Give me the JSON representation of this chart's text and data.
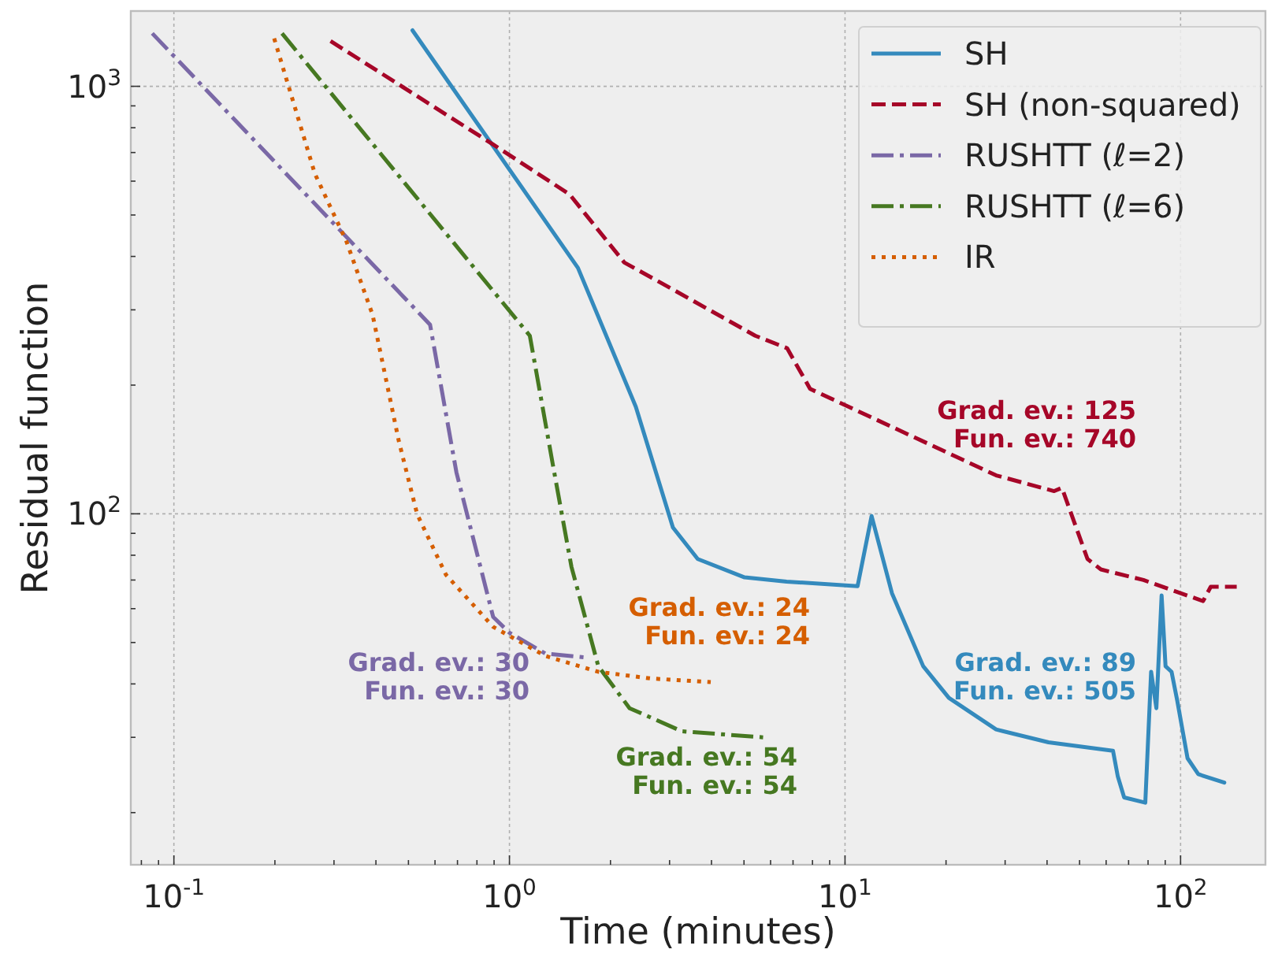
{
  "chart_data": {
    "type": "line",
    "xlabel": "Time (minutes)",
    "ylabel": "Residual function",
    "log": "xy",
    "grid": true,
    "legend": "top right",
    "xlim": [
      0.0744,
      179
    ],
    "ylim": [
      15.1,
      1500
    ],
    "xticks": [
      {
        "value": 0.08,
        "label": null
      },
      {
        "value": 0.09,
        "label": null
      },
      {
        "value": 0.1,
        "label": "10$^{-1}$"
      },
      {
        "value": 0.2,
        "label": null
      },
      {
        "value": 0.3,
        "label": null
      },
      {
        "value": 0.4,
        "label": null
      },
      {
        "value": 0.5,
        "label": null
      },
      {
        "value": 0.6,
        "label": null
      },
      {
        "value": 0.7,
        "label": null
      },
      {
        "value": 0.8,
        "label": null
      },
      {
        "value": 0.9,
        "label": null
      },
      {
        "value": 1,
        "label": "10$^{0}$"
      },
      {
        "value": 2,
        "label": null
      },
      {
        "value": 3,
        "label": null
      },
      {
        "value": 4,
        "label": null
      },
      {
        "value": 5,
        "label": null
      },
      {
        "value": 6,
        "label": null
      },
      {
        "value": 7,
        "label": null
      },
      {
        "value": 8,
        "label": null
      },
      {
        "value": 9,
        "label": null
      },
      {
        "value": 10,
        "label": "10$^{1}$"
      },
      {
        "value": 20,
        "label": null
      },
      {
        "value": 30,
        "label": null
      },
      {
        "value": 40,
        "label": null
      },
      {
        "value": 50,
        "label": null
      },
      {
        "value": 60,
        "label": null
      },
      {
        "value": 70,
        "label": null
      },
      {
        "value": 80,
        "label": null
      },
      {
        "value": 90,
        "label": null
      },
      {
        "value": 100,
        "label": "10$^{2}$"
      }
    ],
    "yticks": [
      {
        "value": 20,
        "label": null
      },
      {
        "value": 30,
        "label": null
      },
      {
        "value": 40,
        "label": null
      },
      {
        "value": 50,
        "label": null
      },
      {
        "value": 60,
        "label": null
      },
      {
        "value": 70,
        "label": null
      },
      {
        "value": 80,
        "label": null
      },
      {
        "value": 90,
        "label": null
      },
      {
        "value": 100,
        "label": "10$^{2}$"
      },
      {
        "value": 200,
        "label": null
      },
      {
        "value": 300,
        "label": null
      },
      {
        "value": 400,
        "label": null
      },
      {
        "value": 500,
        "label": null
      },
      {
        "value": 600,
        "label": null
      },
      {
        "value": 700,
        "label": null
      },
      {
        "value": 800,
        "label": null
      },
      {
        "value": 900,
        "label": null
      },
      {
        "value": 1000,
        "label": "10$^{3}$"
      }
    ],
    "series": [
      {
        "name": "SH",
        "color": "#348abd",
        "line_style": "solid",
        "x": [
          0.514,
          1.6,
          2.38,
          3.07,
          3.64,
          5.02,
          6.7,
          10.9,
          12.0,
          13.8,
          17.1,
          20.4,
          28.2,
          40.4,
          62.9,
          65.0,
          67.9,
          78.5,
          81.7,
          84.7,
          87.8,
          90.2,
          94.0,
          97.7,
          104.9,
          112.9,
          135
        ],
        "values": [
          1352,
          376,
          178,
          92.9,
          78.4,
          71.0,
          69.4,
          67.7,
          98.8,
          65.2,
          44.0,
          37.1,
          31.3,
          29.2,
          27.9,
          24.3,
          21.7,
          21.1,
          42.7,
          35.1,
          64.4,
          44.0,
          42.7,
          36.6,
          26.8,
          24.6,
          23.5
        ]
      },
      {
        "name": "SH (non-squared)",
        "color": "#a60628",
        "line_style": "dashed",
        "x": [
          0.293,
          0.468,
          0.894,
          1.51,
          2.2,
          3.15,
          5.4,
          6.72,
          7.87,
          19.8,
          28.2,
          42.0,
          44.3,
          52.8,
          57.9,
          77.5,
          116.7,
          123,
          147
        ],
        "values": [
          1276,
          1010,
          731,
          559,
          387,
          331,
          261,
          244,
          196,
          140,
          123,
          113,
          115,
          78.4,
          74.1,
          70.0,
          62.5,
          67.5,
          67.5
        ]
      },
      {
        "name": "RUSHTT (ℓ=2)",
        "color": "#7a68a6",
        "line_style": "dashdot",
        "x": [
          0.0862,
          0.58,
          0.695,
          0.894,
          1.0,
          1.28,
          1.71
        ],
        "values": [
          1330,
          277,
          125,
          57.4,
          52.7,
          47.1,
          46.1
        ]
      },
      {
        "name": "RUSHTT (ℓ=6)",
        "color": "#467821",
        "line_style": "dashdot",
        "x": [
          0.21,
          1.15,
          1.35,
          1.53,
          1.84,
          2.28,
          3.26,
          5.7
        ],
        "values": [
          1330,
          261,
          129,
          75.2,
          44.0,
          35.1,
          31.0,
          30.0
        ]
      },
      {
        "name": "IR",
        "color": "#d55e00",
        "line_style": "dotted",
        "x": [
          0.199,
          0.263,
          0.327,
          0.391,
          0.468,
          0.531,
          0.647,
          0.894,
          1.28,
          1.84,
          2.63,
          3.98
        ],
        "values": [
          1294,
          625,
          433,
          292,
          148,
          99.7,
          72.0,
          54.4,
          46.5,
          42.7,
          41.2,
          40.4
        ]
      }
    ],
    "annotations": [
      "Grad. ev.: 89\nFun. ev.: 505",
      "Grad. ev.: 125\nFun. ev.: 740",
      "Grad. ev.: 30\nFun. ev.: 30",
      "Grad. ev.: 54\nFun. ev.: 54",
      "Grad. ev.: 24\nFun. ev.: 24"
    ]
  }
}
